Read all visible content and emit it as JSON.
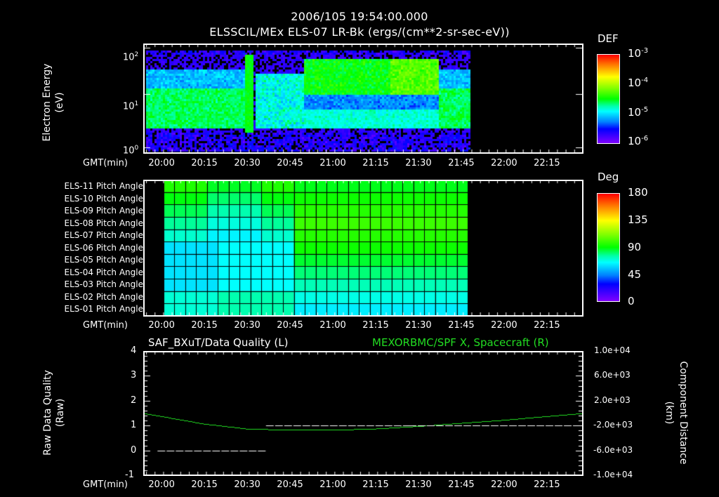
{
  "header": {
    "timestamp": "2006/105 19:54:00.000",
    "title": "ELSSCIL/MEx ELS-07 LR-Bk  (ergs/(cm**2-sr-sec-eV))"
  },
  "time_axis": {
    "label": "GMT(min)",
    "ticks": [
      "20:00",
      "20:15",
      "20:30",
      "20:45",
      "21:00",
      "21:15",
      "21:30",
      "21:45",
      "22:00",
      "22:15"
    ]
  },
  "panel1": {
    "ylabel_line1": "Electron Energy",
    "ylabel_line2": "(eV)",
    "yticks": [
      {
        "base": "10",
        "exp": "2"
      },
      {
        "base": "10",
        "exp": "1"
      },
      {
        "base": "10",
        "exp": "0"
      }
    ],
    "colorbar": {
      "title": "DEF",
      "ticks": [
        {
          "base": "10",
          "exp": "-3"
        },
        {
          "base": "10",
          "exp": "-4"
        },
        {
          "base": "10",
          "exp": "-5"
        },
        {
          "base": "10",
          "exp": "-6"
        }
      ]
    }
  },
  "panel2": {
    "rows": [
      "ELS-11 Pitch Angle",
      "ELS-10 Pitch Angle",
      "ELS-09 Pitch Angle",
      "ELS-08 Pitch Angle",
      "ELS-07 Pitch Angle",
      "ELS-06 Pitch Angle",
      "ELS-05 Pitch Angle",
      "ELS-04 Pitch Angle",
      "ELS-03 Pitch Angle",
      "ELS-02 Pitch Angle",
      "ELS-01 Pitch Angle"
    ],
    "colorbar": {
      "title": "Deg",
      "ticks": [
        "180",
        "135",
        "90",
        "45",
        "0"
      ]
    }
  },
  "panel3": {
    "left_title": "SAF_BXuT/Data Quality (L)",
    "right_title": "MEXORBMC/SPF X, Spacecraft (R)",
    "ylabel_left_line1": "Raw Data Quality",
    "ylabel_left_line2": "(Raw)",
    "ylabel_right_line1": "Component Distance",
    "ylabel_right_line2": "(km)",
    "yticks_left": [
      "4",
      "3",
      "2",
      "1",
      "0",
      "-1"
    ],
    "yticks_right": [
      "1.0e+04",
      "6.0e+03",
      "2.0e+03",
      "-2.0e+03",
      "-6.0e+03",
      "-1.0e+04"
    ],
    "colors": {
      "right_series": "#22dd22",
      "left_series": "#ffffff"
    }
  },
  "chart_data": [
    {
      "type": "heatmap",
      "title": "ELSSCIL/MEx ELS-07 LR-Bk (ergs/(cm**2-sr-sec-eV))",
      "xlabel": "GMT(min)",
      "ylabel": "Electron Energy (eV)",
      "x_range": [
        "19:54",
        "22:28"
      ],
      "data_extent": [
        "19:54",
        "21:48"
      ],
      "ylim": [
        1,
        150
      ],
      "yscale": "log",
      "colorbar": {
        "label": "DEF",
        "range": [
          1e-06,
          0.001
        ],
        "scale": "log"
      },
      "features": [
        {
          "time": "19:54-20:30",
          "energy_eV": "3-20",
          "level": "~3e-5"
        },
        {
          "time": "20:31",
          "energy_eV": "3-100",
          "level": "~1e-4 spike"
        },
        {
          "time": "20:50-21:37",
          "energy_eV": "20-80",
          "level": "~1e-4 to 3e-4"
        },
        {
          "time": "21:37-21:48",
          "energy_eV": "3-20",
          "level": "~3e-5"
        }
      ]
    },
    {
      "type": "heatmap",
      "title": "ELS Pitch Angle",
      "xlabel": "GMT(min)",
      "categories": [
        "ELS-11",
        "ELS-10",
        "ELS-09",
        "ELS-08",
        "ELS-07",
        "ELS-06",
        "ELS-05",
        "ELS-04",
        "ELS-03",
        "ELS-02",
        "ELS-01"
      ],
      "data_extent": [
        "19:59",
        "21:48"
      ],
      "colorbar": {
        "label": "Deg",
        "range": [
          0,
          180
        ]
      },
      "summary": "Anodes 11-06 ~85-100 deg, anodes 05-01 ~55-75 deg; early period (20:00-20:35) lower values ~55-70 deg on mid anodes"
    },
    {
      "type": "line",
      "title": "SAF_BXuT/Data Quality (L) & MEXORBMC/SPF X, Spacecraft (R)",
      "xlabel": "GMT(min)",
      "series": [
        {
          "name": "Data Quality (L)",
          "axis": "left",
          "segments": [
            {
              "x": [
                "19:59",
                "20:37"
              ],
              "y": 0
            },
            {
              "x": [
                "20:37",
                "21:26"
              ],
              "y": 1
            },
            {
              "x": [
                "21:27",
                "22:25"
              ],
              "y": 1
            }
          ]
        },
        {
          "name": "SPF X (R, km)",
          "axis": "right",
          "x": [
            "19:54",
            "20:15",
            "20:30",
            "20:45",
            "21:00",
            "21:15",
            "21:30",
            "21:45",
            "22:00",
            "22:15",
            "22:28"
          ],
          "values": [
            0,
            -1700,
            -2500,
            -2700,
            -2700,
            -2500,
            -2100,
            -1600,
            -1100,
            -500,
            0
          ]
        }
      ],
      "ylim_left": [
        -1,
        4
      ],
      "ylim_right": [
        -10000,
        10000
      ]
    }
  ]
}
